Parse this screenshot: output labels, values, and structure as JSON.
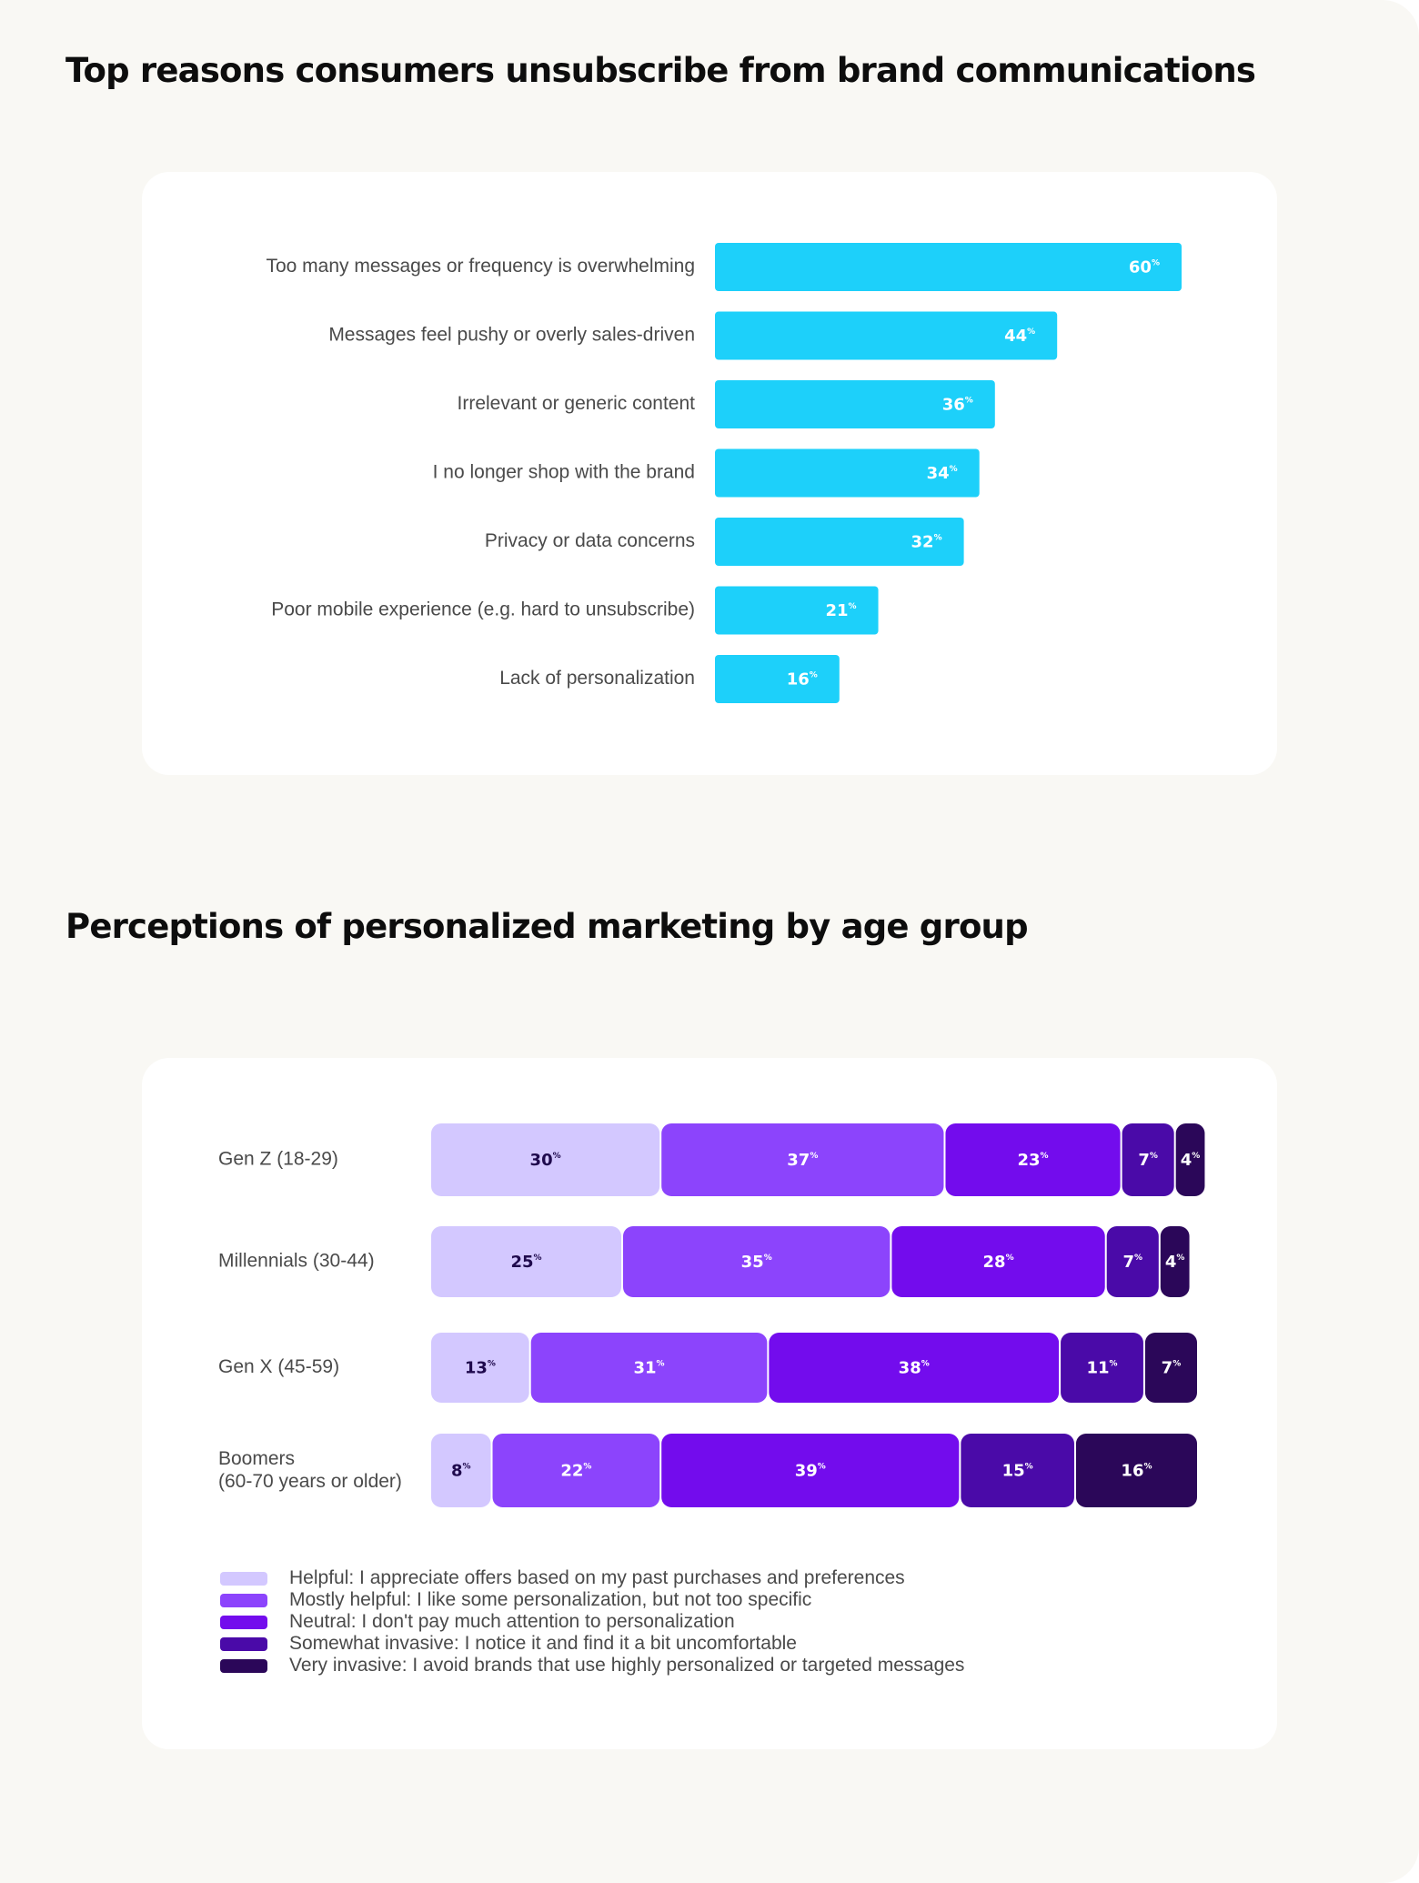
{
  "chart_data": [
    {
      "type": "bar",
      "orientation": "horizontal",
      "title": "Top reasons consumers unsubscribe from brand communications",
      "categories": [
        "Too many messages or frequency is overwhelming",
        "Messages feel pushy or overly sales-driven",
        "Irrelevant or generic content",
        "I no longer shop with the brand",
        "Privacy or data concerns",
        "Poor mobile experience (e.g. hard to unsubscribe)",
        "Lack of personalization"
      ],
      "values": [
        60,
        44,
        36,
        34,
        32,
        21,
        16
      ],
      "unit": "%",
      "xlim": [
        0,
        100
      ],
      "grid": false,
      "bar_color": "#1dd0fa",
      "label_color": "#ffffff"
    },
    {
      "type": "bar",
      "orientation": "horizontal",
      "stacked": true,
      "title": "Perceptions of personalized marketing by age group",
      "categories": [
        [
          "Gen Z (18-29)"
        ],
        [
          "Millennials (30-44)"
        ],
        [
          "Gen X (45-59)"
        ],
        [
          "Boomers",
          "(60-70 years or older)"
        ]
      ],
      "series": [
        {
          "name": "Helpful: I appreciate offers based on my past purchases and preferences",
          "values": [
            30,
            25,
            13,
            8
          ],
          "color": "#d3c8ff",
          "label_color": "#1f0a4d"
        },
        {
          "name": "Mostly helpful: I like some personalization, but not too specific",
          "values": [
            37,
            35,
            31,
            22
          ],
          "color": "#8c44fc",
          "label_color": "#ffffff"
        },
        {
          "name": "Neutral: I don't pay much attention to personalization",
          "values": [
            23,
            28,
            38,
            39
          ],
          "color": "#730ced",
          "label_color": "#ffffff"
        },
        {
          "name": "Somewhat invasive: I notice it and find it a bit uncomfortable",
          "values": [
            7,
            7,
            11,
            15
          ],
          "color": "#4a0aa8",
          "label_color": "#ffffff"
        },
        {
          "name": "Very invasive: I avoid brands that use highly personalized or targeted messages",
          "values": [
            4,
            4,
            7,
            16
          ],
          "color": "#2b0759",
          "label_color": "#ffffff"
        }
      ],
      "unit": "%",
      "xlim": [
        0,
        100
      ],
      "grid": false,
      "legend": "bottom"
    }
  ]
}
